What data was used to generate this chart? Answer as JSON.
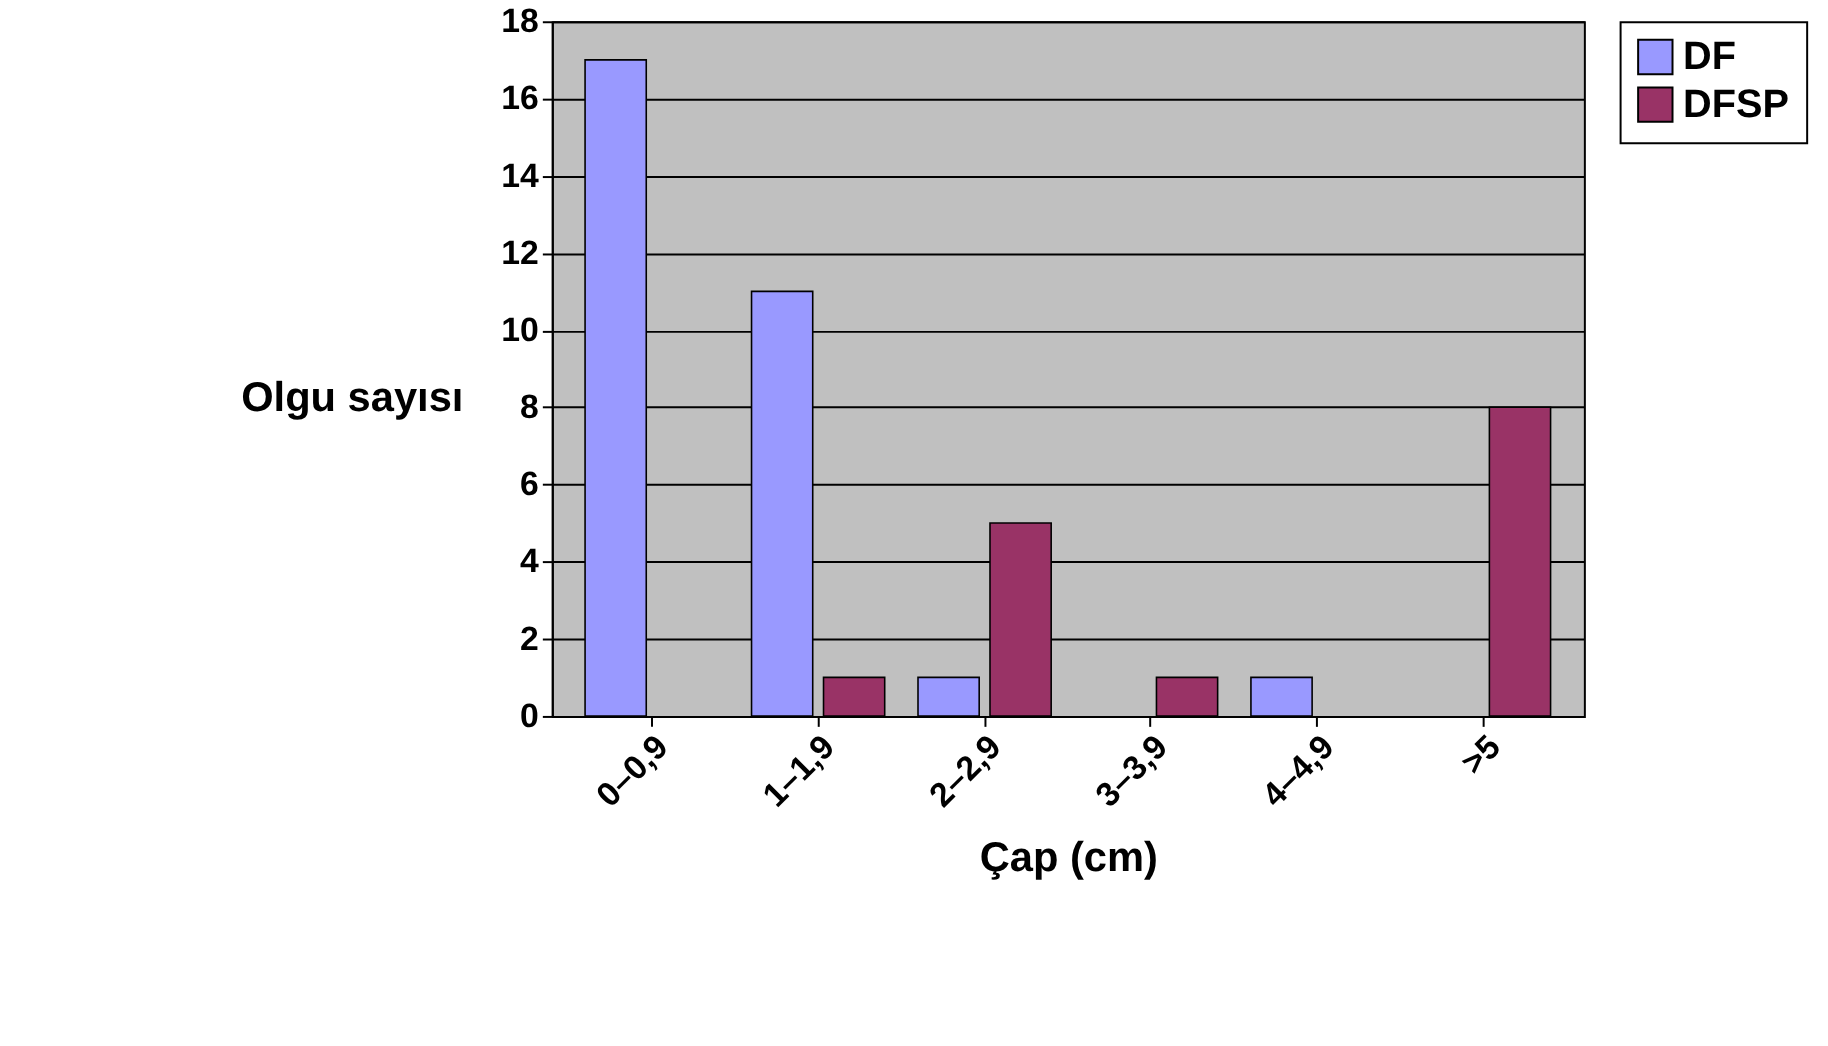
{
  "chart_data": {
    "type": "bar",
    "xlabel": "Çap (cm)",
    "ylabel": "Olgu sayısı",
    "categories": [
      "0–0,9",
      "1–1,9",
      "2–2,9",
      "3–3,9",
      "4–4,9",
      ">5"
    ],
    "series": [
      {
        "name": "DF",
        "color": "#9999ff",
        "values": [
          17,
          11,
          1,
          0,
          1,
          0
        ]
      },
      {
        "name": "DFSP",
        "color": "#993366",
        "values": [
          0,
          1,
          5,
          1,
          0,
          8
        ]
      }
    ],
    "ylim": [
      0,
      18
    ],
    "yticks": [
      0,
      2,
      4,
      6,
      8,
      10,
      12,
      14,
      16,
      18
    ],
    "grid": "y",
    "legend": "right"
  }
}
